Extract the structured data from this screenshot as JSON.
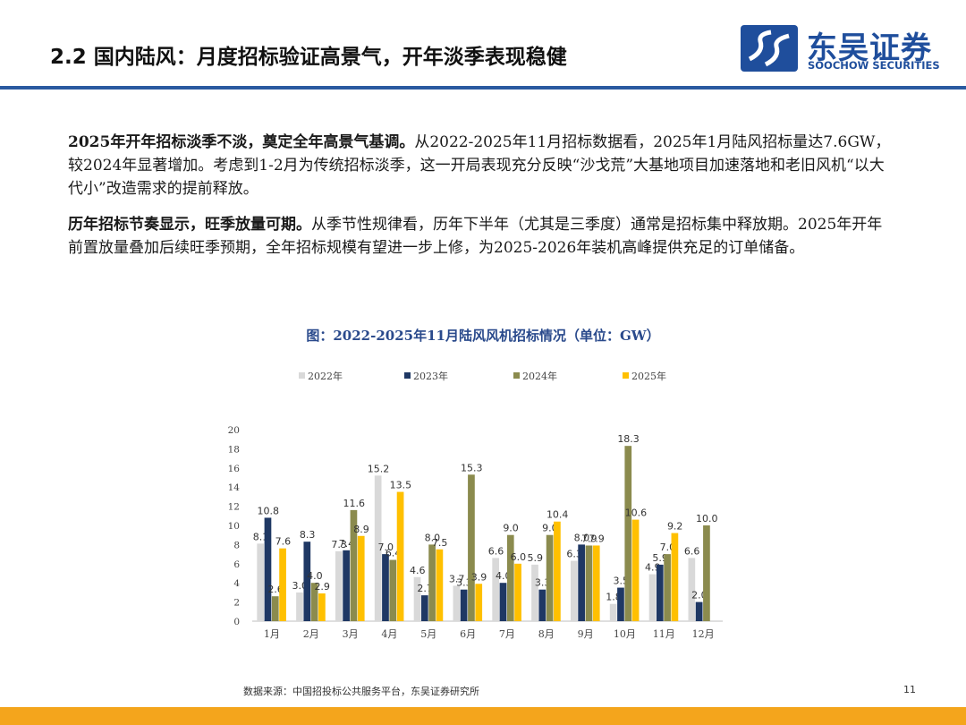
{
  "header": {
    "title": "2.2 国内陆风：月度招标验证高景气，开年淡季表现稳健"
  },
  "logo": {
    "name_cn": "东吴证券",
    "name_en": "SOOCHOW SECURITIES"
  },
  "paragraphs": [
    {
      "lead": "2025年开年招标淡季不淡，奠定全年高景气基调。",
      "body": "从2022-2025年11月招标数据看，2025年1月陆风招标量达7.6GW，较2024年显著增加。考虑到1-2月为传统招标淡季，这一开局表现充分反映“沙戈荒”大基地项目加速落地和老旧风机“以大代小”改造需求的提前释放。"
    },
    {
      "lead": "历年招标节奏显示，旺季放量可期。",
      "body": "从季节性规律看，历年下半年（尤其是三季度）通常是招标集中释放期。2025年开年前置放量叠加后续旺季预期，全年招标规模有望进一步上修，为2025-2026年装机高峰提供充足的订单储备。"
    }
  ],
  "chart_title": "图：2022-2025年11月陆风风机招标情况（单位：GW）",
  "colors": {
    "accent": "#2a5aa0",
    "footer": "#f4a51c",
    "s2022": "#d9d9d9",
    "s2023": "#1f3864",
    "s2024": "#8b8b4e",
    "s2025": "#ffc000"
  },
  "chart_data": {
    "type": "bar",
    "title": "2022-2025年11月陆风风机招标情况（单位：GW）",
    "xlabel": "",
    "ylabel": "",
    "ylim": [
      0,
      20
    ],
    "yticks": [
      0,
      2,
      4,
      6,
      8,
      10,
      12,
      14,
      16,
      18,
      20
    ],
    "grid": false,
    "legend_position": "top",
    "categories": [
      "1月",
      "2月",
      "3月",
      "4月",
      "5月",
      "6月",
      "7月",
      "8月",
      "9月",
      "10月",
      "11月",
      "12月"
    ],
    "series": [
      {
        "name": "2022年",
        "color": "#d9d9d9",
        "values": [
          8.1,
          3.0,
          7.3,
          15.2,
          4.6,
          3.7,
          6.6,
          5.9,
          6.3,
          1.8,
          4.9,
          6.6
        ]
      },
      {
        "name": "2023年",
        "color": "#1f3864",
        "values": [
          10.8,
          8.3,
          7.4,
          7.0,
          2.7,
          3.3,
          4.0,
          3.3,
          8.0,
          3.5,
          5.9,
          2.0
        ]
      },
      {
        "name": "2024年",
        "color": "#8b8b4e",
        "values": [
          2.6,
          4.0,
          11.6,
          6.4,
          8.0,
          15.3,
          9.0,
          9.0,
          7.9,
          18.3,
          7.0,
          10.0
        ]
      },
      {
        "name": "2025年",
        "color": "#ffc000",
        "values": [
          7.6,
          2.9,
          8.9,
          13.5,
          7.5,
          3.9,
          6.0,
          10.4,
          7.9,
          10.6,
          9.2,
          null
        ]
      }
    ]
  },
  "footer": {
    "source": "数据来源：中国招投标公共服务平台，东吴证券研究所",
    "page": "11"
  }
}
